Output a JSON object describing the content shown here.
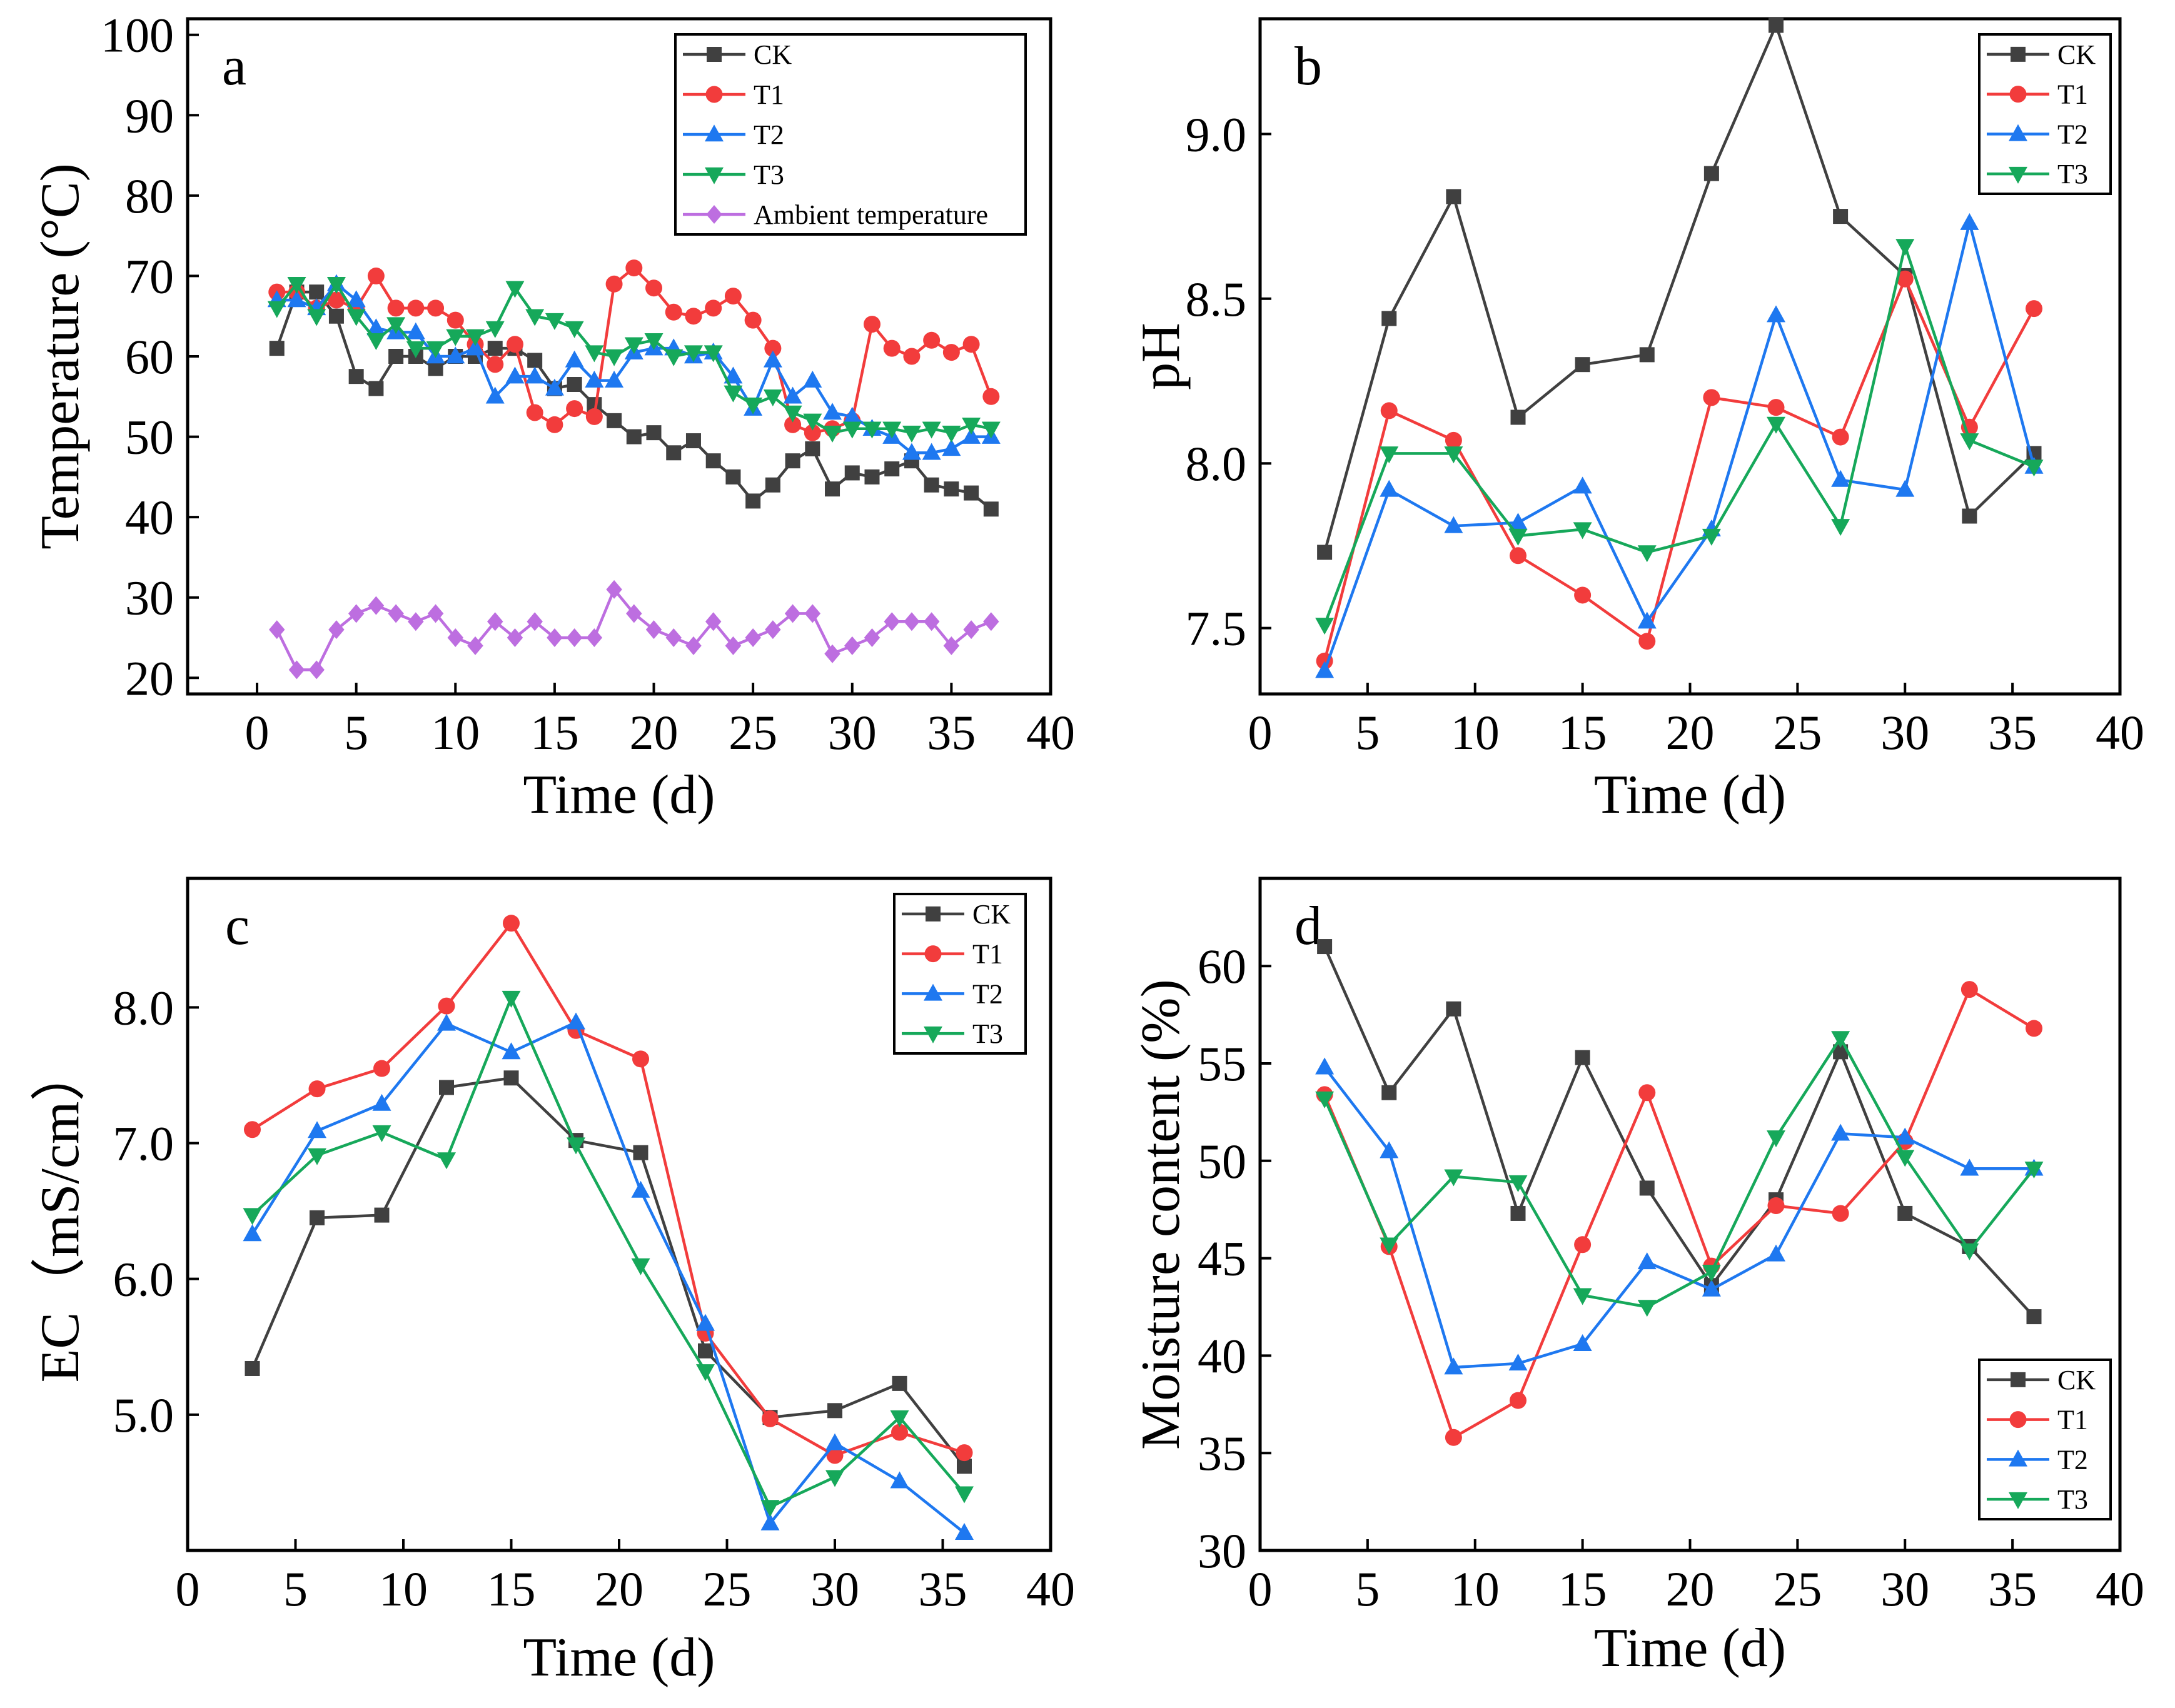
{
  "figure": {
    "style": {
      "colors": {
        "CK": "#404040",
        "T1": "#f23c3c",
        "T2": "#1e78f0",
        "T3": "#16a85a",
        "Ambient temperature": "#bd6ee0"
      },
      "markers": {
        "CK": "square",
        "T1": "circle",
        "T2": "triangle-up",
        "T3": "triangle-down",
        "Ambient temperature": "diamond"
      }
    }
  },
  "chart_data": [
    {
      "panel": "a",
      "type": "line",
      "title": "",
      "xlabel": "Time (d)",
      "ylabel": "Temperature (°C)",
      "xlim": [
        -3.5,
        40
      ],
      "ylim": [
        18,
        102
      ],
      "xticks": [
        0,
        5,
        10,
        15,
        20,
        25,
        30,
        35,
        40
      ],
      "yticks": [
        20,
        30,
        40,
        50,
        60,
        70,
        80,
        90,
        100
      ],
      "legend_position": "top-right",
      "series": [
        {
          "name": "CK",
          "x": [
            1,
            2,
            3,
            4,
            5,
            6,
            7,
            8,
            9,
            10,
            11,
            12,
            13,
            14,
            15,
            16,
            17,
            18,
            19,
            20,
            21,
            22,
            23,
            24,
            25,
            26,
            27,
            28,
            29,
            30,
            31,
            32,
            33,
            34,
            35,
            36,
            37
          ],
          "values": [
            61,
            68,
            68,
            65,
            57.5,
            56,
            60,
            60,
            58.5,
            60,
            60,
            61,
            61,
            59.5,
            56,
            56.5,
            54,
            52,
            50,
            50.5,
            48,
            49.5,
            47,
            45,
            42,
            44,
            47,
            48.5,
            43.5,
            45.5,
            45,
            46,
            47,
            44,
            43.5,
            43,
            41
          ]
        },
        {
          "name": "T1",
          "x": [
            1,
            2,
            3,
            4,
            5,
            6,
            7,
            8,
            9,
            10,
            11,
            12,
            13,
            14,
            15,
            16,
            17,
            18,
            19,
            20,
            21,
            22,
            23,
            24,
            25,
            26,
            27,
            28,
            29,
            30,
            31,
            32,
            33,
            34,
            35,
            36,
            37
          ],
          "values": [
            68,
            68,
            66,
            67,
            66,
            70,
            66,
            66,
            66,
            64.5,
            61.5,
            59,
            61.5,
            53,
            51.5,
            53.5,
            52.5,
            69,
            71,
            68.5,
            65.5,
            65,
            66,
            67.5,
            64.5,
            61,
            51.5,
            50.5,
            51,
            52,
            64,
            61,
            60,
            62,
            60.5,
            61.5,
            55
          ]
        },
        {
          "name": "T2",
          "x": [
            1,
            2,
            3,
            4,
            5,
            6,
            7,
            8,
            9,
            10,
            11,
            12,
            13,
            14,
            15,
            16,
            17,
            18,
            19,
            20,
            21,
            22,
            23,
            24,
            25,
            26,
            27,
            28,
            29,
            30,
            31,
            32,
            33,
            34,
            35,
            36,
            37
          ],
          "values": [
            67,
            67,
            66,
            69,
            67,
            63.5,
            63,
            63,
            60,
            60,
            61,
            55,
            57.5,
            57.5,
            56,
            59.5,
            57,
            57,
            60.5,
            61,
            61,
            60,
            60.5,
            57.5,
            53.5,
            59.5,
            55,
            57,
            53,
            52.5,
            51,
            50,
            48,
            48,
            48.5,
            50,
            50
          ]
        },
        {
          "name": "T3",
          "x": [
            1,
            2,
            3,
            4,
            5,
            6,
            7,
            8,
            9,
            10,
            11,
            12,
            13,
            14,
            15,
            16,
            17,
            18,
            19,
            20,
            21,
            22,
            23,
            24,
            25,
            26,
            27,
            28,
            29,
            30,
            31,
            32,
            33,
            34,
            35,
            36,
            37
          ],
          "values": [
            66,
            69,
            65,
            69,
            65,
            62,
            64,
            61,
            61,
            62.5,
            62.5,
            63.5,
            68.5,
            65,
            64.5,
            63.5,
            60.5,
            60,
            61.5,
            62,
            60,
            60.5,
            60.5,
            55.5,
            54,
            55,
            53,
            52,
            50.5,
            51,
            51,
            51,
            50.5,
            51,
            50.5,
            51.5,
            51
          ]
        },
        {
          "name": "Ambient temperature",
          "x": [
            1,
            2,
            3,
            4,
            5,
            6,
            7,
            8,
            9,
            10,
            11,
            12,
            13,
            14,
            15,
            16,
            17,
            18,
            19,
            20,
            21,
            22,
            23,
            24,
            25,
            26,
            27,
            28,
            29,
            30,
            31,
            32,
            33,
            34,
            35,
            36,
            37
          ],
          "values": [
            26,
            21,
            21,
            26,
            28,
            29,
            28,
            27,
            28,
            25,
            24,
            27,
            25,
            27,
            25,
            25,
            25,
            31,
            28,
            26,
            25,
            24,
            27,
            24,
            25,
            26,
            28,
            28,
            23,
            24,
            25,
            27,
            27,
            27,
            24,
            26,
            27
          ]
        }
      ]
    },
    {
      "panel": "b",
      "type": "line",
      "title": "",
      "xlabel": "Time (d)",
      "ylabel": "pH",
      "xlim": [
        0,
        40
      ],
      "ylim": [
        7.3,
        9.35
      ],
      "xticks": [
        0,
        5,
        10,
        15,
        20,
        25,
        30,
        35,
        40
      ],
      "yticks": [
        7.5,
        8.0,
        8.5,
        9.0
      ],
      "ytick_labels": [
        "7.5",
        "8.0",
        "8.5",
        "9.0"
      ],
      "legend_position": "top-right",
      "series": [
        {
          "name": "CK",
          "x": [
            3,
            6,
            9,
            12,
            15,
            18,
            21,
            24,
            27,
            30,
            33,
            36
          ],
          "values": [
            7.73,
            8.44,
            8.81,
            8.14,
            8.3,
            8.33,
            8.88,
            9.33,
            8.75,
            8.57,
            7.84,
            8.03
          ]
        },
        {
          "name": "T1",
          "x": [
            3,
            6,
            9,
            12,
            15,
            18,
            21,
            24,
            27,
            30,
            33,
            36
          ],
          "values": [
            7.4,
            8.16,
            8.07,
            7.72,
            7.6,
            7.46,
            8.2,
            8.17,
            8.08,
            8.56,
            8.11,
            8.47
          ]
        },
        {
          "name": "T2",
          "x": [
            3,
            6,
            9,
            12,
            15,
            18,
            21,
            24,
            27,
            30,
            33,
            36
          ],
          "values": [
            7.37,
            7.92,
            7.81,
            7.82,
            7.93,
            7.52,
            7.8,
            8.45,
            7.95,
            7.92,
            8.73,
            7.99
          ]
        },
        {
          "name": "T3",
          "x": [
            3,
            6,
            9,
            12,
            15,
            18,
            21,
            24,
            27,
            30,
            33,
            36
          ],
          "values": [
            7.51,
            8.03,
            8.03,
            7.78,
            7.8,
            7.73,
            7.78,
            8.12,
            7.81,
            8.66,
            8.07,
            7.99
          ]
        }
      ]
    },
    {
      "panel": "c",
      "type": "line",
      "title": "",
      "xlabel": "Time (d)",
      "ylabel": "EC（mS/cm）",
      "xlim": [
        0,
        40
      ],
      "ylim": [
        4.0,
        8.95
      ],
      "xticks": [
        0,
        5,
        10,
        15,
        20,
        25,
        30,
        35,
        40
      ],
      "yticks": [
        5.0,
        6.0,
        7.0,
        8.0
      ],
      "ytick_labels": [
        "5.0",
        "6.0",
        "7.0",
        "8.0"
      ],
      "legend_position": "top-right",
      "series": [
        {
          "name": "CK",
          "x": [
            3,
            6,
            9,
            12,
            15,
            18,
            21,
            24,
            27,
            30,
            33,
            36
          ],
          "values": [
            5.34,
            6.45,
            6.47,
            7.41,
            7.48,
            7.02,
            6.93,
            5.47,
            4.98,
            5.03,
            5.23,
            4.62
          ]
        },
        {
          "name": "T1",
          "x": [
            3,
            6,
            9,
            12,
            15,
            18,
            21,
            24,
            27,
            30,
            33,
            36
          ],
          "values": [
            7.1,
            7.4,
            7.55,
            8.01,
            8.62,
            7.83,
            7.62,
            5.6,
            4.97,
            4.7,
            4.87,
            4.72
          ]
        },
        {
          "name": "T2",
          "x": [
            3,
            6,
            9,
            12,
            15,
            18,
            21,
            24,
            27,
            30,
            33,
            36
          ],
          "values": [
            6.33,
            7.09,
            7.29,
            7.88,
            7.67,
            7.89,
            6.65,
            5.67,
            4.2,
            4.79,
            4.51,
            4.13
          ]
        },
        {
          "name": "T3",
          "x": [
            3,
            6,
            9,
            12,
            15,
            18,
            21,
            24,
            27,
            30,
            33,
            36
          ],
          "values": [
            6.47,
            6.91,
            7.08,
            6.88,
            8.07,
            6.99,
            6.1,
            5.32,
            4.32,
            4.54,
            4.98,
            4.42
          ]
        }
      ]
    },
    {
      "panel": "d",
      "type": "line",
      "title": "",
      "xlabel": "Time (d)",
      "ylabel": "Moisture content (%)",
      "xlim": [
        0,
        40
      ],
      "ylim": [
        30,
        64.5
      ],
      "xticks": [
        0,
        5,
        10,
        15,
        20,
        25,
        30,
        35,
        40
      ],
      "yticks": [
        30,
        35,
        40,
        45,
        50,
        55,
        60
      ],
      "legend_position": "bottom-right",
      "series": [
        {
          "name": "CK",
          "x": [
            3,
            6,
            9,
            12,
            15,
            18,
            21,
            24,
            27,
            30,
            33,
            36
          ],
          "values": [
            61.0,
            53.5,
            57.8,
            47.3,
            55.3,
            48.6,
            43.6,
            48.0,
            55.6,
            47.3,
            45.6,
            42.0
          ]
        },
        {
          "name": "T1",
          "x": [
            3,
            6,
            9,
            12,
            15,
            18,
            21,
            24,
            27,
            30,
            33,
            36
          ],
          "values": [
            53.4,
            45.6,
            35.8,
            37.7,
            45.7,
            53.5,
            44.6,
            47.7,
            47.3,
            51.0,
            58.8,
            56.8
          ]
        },
        {
          "name": "T2",
          "x": [
            3,
            6,
            9,
            12,
            15,
            18,
            21,
            24,
            27,
            30,
            33,
            36
          ],
          "values": [
            54.8,
            50.5,
            39.4,
            39.6,
            40.6,
            44.8,
            43.4,
            45.2,
            51.4,
            51.2,
            49.6,
            49.6
          ]
        },
        {
          "name": "T3",
          "x": [
            3,
            6,
            9,
            12,
            15,
            18,
            21,
            24,
            27,
            30,
            33,
            36
          ],
          "values": [
            53.2,
            45.7,
            49.2,
            48.9,
            43.1,
            42.5,
            44.3,
            51.2,
            56.3,
            50.2,
            45.4,
            49.6
          ]
        }
      ]
    }
  ]
}
